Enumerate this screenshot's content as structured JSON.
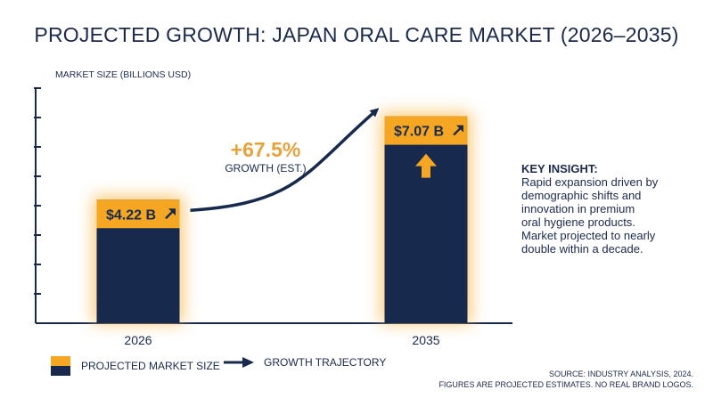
{
  "chart_data": {
    "type": "bar",
    "title": "PROJECTED GROWTH: JAPAN ORAL CARE MARKET (2026–2035)",
    "ylabel": "MARKET SIZE (BILLIONS USD)",
    "categories": [
      "2026",
      "2035"
    ],
    "values": [
      4.22,
      7.07
    ],
    "data_labels": [
      "$4.22 B",
      "$7.07 B"
    ],
    "ylim": [
      0,
      8
    ],
    "grid": false,
    "annotation": {
      "value": "+67.5%",
      "label": "GROWTH (EST.)"
    }
  },
  "insight": {
    "heading": "KEY INSIGHT:",
    "lines": [
      "Rapid expansion driven by",
      "demographic shifts and",
      "innovation in premium",
      "oral hygiene products.",
      "Market projected to nearly",
      "double within a decade."
    ]
  },
  "legend": {
    "bar_label": "PROJECTED MARKET SIZE",
    "arrow_label": "GROWTH TRAJECTORY"
  },
  "source": {
    "line1": "SOURCE: INDUSTRY ANALYSIS, 2024.",
    "line2": "FIGURES ARE PROJECTED ESTIMATES. NO REAL BRAND LOGOS."
  },
  "colors": {
    "navy": "#172a4d",
    "orange": "#f5a623",
    "accent_text": "#e8a23a"
  }
}
